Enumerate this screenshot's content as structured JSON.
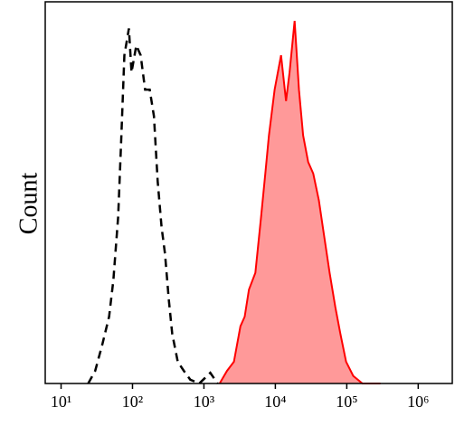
{
  "chart_data": {
    "type": "line",
    "y_label": "Count",
    "log_x": true,
    "xlim": [
      6,
      3000000
    ],
    "ylim": [
      0,
      100
    ],
    "xticks": [
      {
        "value": 10,
        "label": "10¹"
      },
      {
        "value": 100,
        "label": "10²"
      },
      {
        "value": 1000,
        "label": "10³"
      },
      {
        "value": 10000,
        "label": "10⁴"
      },
      {
        "value": 100000,
        "label": "10⁵"
      },
      {
        "value": 1000000,
        "label": "10⁶"
      }
    ],
    "series": [
      {
        "color": "#000000",
        "dashed": true,
        "filled": false,
        "x": [
          24,
          30,
          38,
          47,
          54,
          63,
          69,
          77,
          89,
          97,
          113,
          130,
          150,
          174,
          200,
          225,
          255,
          285,
          322,
          360,
          430,
          525,
          645,
          860,
          1230,
          1550
        ],
        "values": [
          0,
          3.3,
          10.4,
          17.5,
          27,
          43.6,
          62.6,
          86,
          93,
          81.5,
          88.6,
          86,
          77,
          77,
          70,
          53,
          41,
          34,
          22,
          13,
          5.7,
          3.3,
          1,
          0,
          2.8,
          0
        ]
      },
      {
        "color": "#ff0000",
        "dashed": false,
        "filled": true,
        "fill_color": "#ff9999",
        "x": [
          1660,
          2100,
          2630,
          3240,
          3720,
          4270,
          5250,
          6310,
          7240,
          8130,
          9770,
          12000,
          14100,
          15800,
          18600,
          21400,
          24500,
          28800,
          33900,
          40700,
          47900,
          57500,
          69200,
          81300,
          97700,
          123000,
          166000,
          295000
        ],
        "values": [
          0,
          3.3,
          5.7,
          15,
          17.5,
          24.6,
          29,
          43.6,
          55,
          65,
          77,
          86,
          74,
          81.5,
          95,
          77,
          65,
          58,
          55,
          48,
          39,
          29,
          20,
          13,
          5.7,
          2,
          0,
          0
        ]
      }
    ]
  }
}
